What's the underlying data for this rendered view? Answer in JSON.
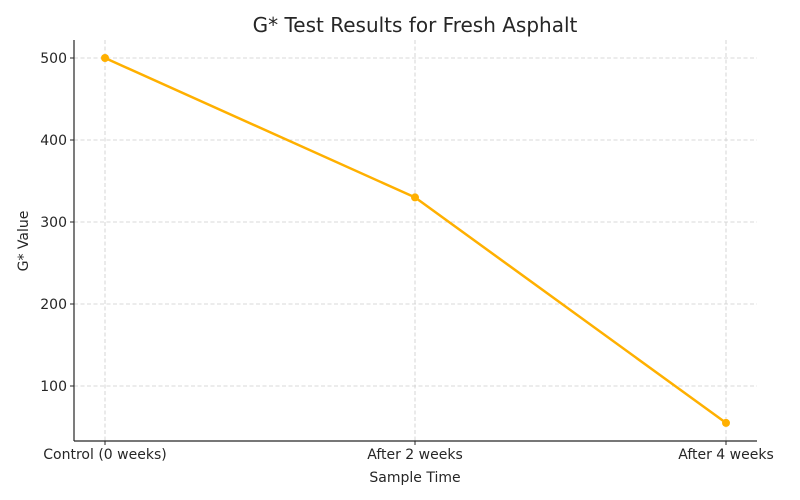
{
  "chart_data": {
    "type": "line",
    "title": "G* Test Results for Fresh Asphalt",
    "xlabel": "Sample Time",
    "ylabel": "G* Value",
    "categories": [
      "Control (0 weeks)",
      "After 2 weeks",
      "After 4 weeks"
    ],
    "series": [
      {
        "name": "G* Value",
        "values": [
          500,
          330,
          55
        ],
        "color": "#FFB000",
        "marker": "circle"
      }
    ],
    "yticks": [
      100,
      200,
      300,
      400,
      500
    ],
    "ylim": [
      33,
      522
    ],
    "grid": true,
    "legend": null
  }
}
